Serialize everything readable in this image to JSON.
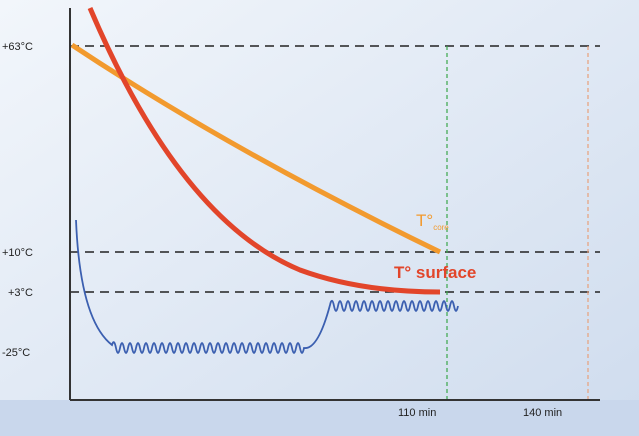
{
  "axis_labels": {
    "y": [
      "+63°C",
      "+10°C",
      "+3°C",
      "-25°C"
    ],
    "x": [
      "110 min",
      "140 min"
    ]
  },
  "curves": {
    "core": {
      "label": "T°",
      "subscript": "core"
    },
    "surface": {
      "label": "T° surface"
    }
  }
}
